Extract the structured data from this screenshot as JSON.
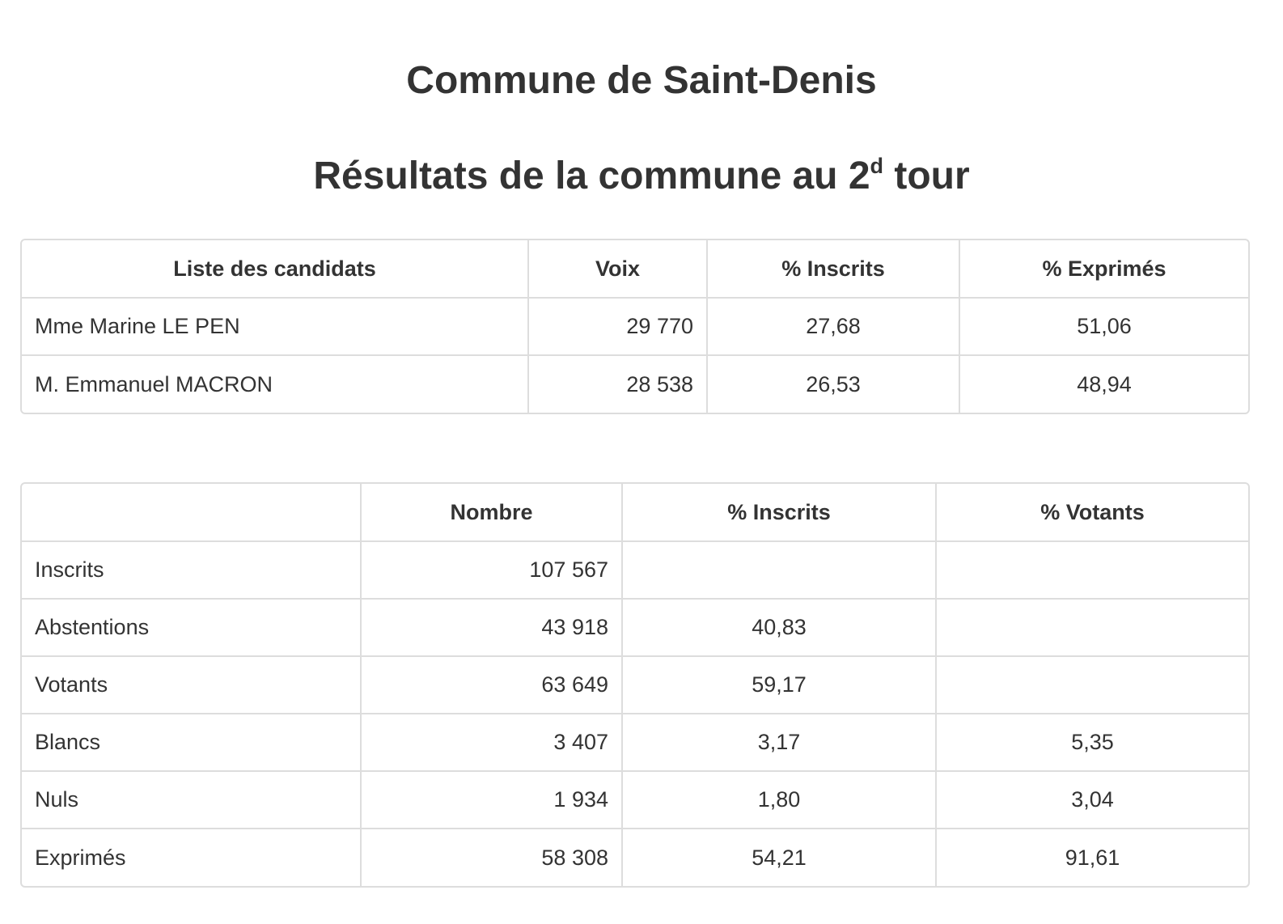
{
  "header": {
    "title": "Commune de Saint-Denis",
    "subtitle_main": "Résultats de la commune au 2",
    "subtitle_sup": "d",
    "subtitle_end": " tour"
  },
  "candidates_table": {
    "columns": [
      "Liste des candidats",
      "Voix",
      "% Inscrits",
      "% Exprimés"
    ],
    "rows": [
      {
        "name": "Mme Marine LE PEN",
        "voix": "29 770",
        "pct_inscrits": "27,68",
        "pct_exprimes": "51,06"
      },
      {
        "name": "M. Emmanuel MACRON",
        "voix": "28 538",
        "pct_inscrits": "26,53",
        "pct_exprimes": "48,94"
      }
    ]
  },
  "stats_table": {
    "columns": [
      "",
      "Nombre",
      "% Inscrits",
      "% Votants"
    ],
    "rows": [
      {
        "label": "Inscrits",
        "nombre": "107 567",
        "pct_inscrits": "",
        "pct_votants": ""
      },
      {
        "label": "Abstentions",
        "nombre": "43 918",
        "pct_inscrits": "40,83",
        "pct_votants": ""
      },
      {
        "label": "Votants",
        "nombre": "63 649",
        "pct_inscrits": "59,17",
        "pct_votants": ""
      },
      {
        "label": "Blancs",
        "nombre": "3 407",
        "pct_inscrits": "3,17",
        "pct_votants": "5,35"
      },
      {
        "label": "Nuls",
        "nombre": "1 934",
        "pct_inscrits": "1,80",
        "pct_votants": "3,04"
      },
      {
        "label": "Exprimés",
        "nombre": "58 308",
        "pct_inscrits": "54,21",
        "pct_votants": "91,61"
      }
    ]
  }
}
